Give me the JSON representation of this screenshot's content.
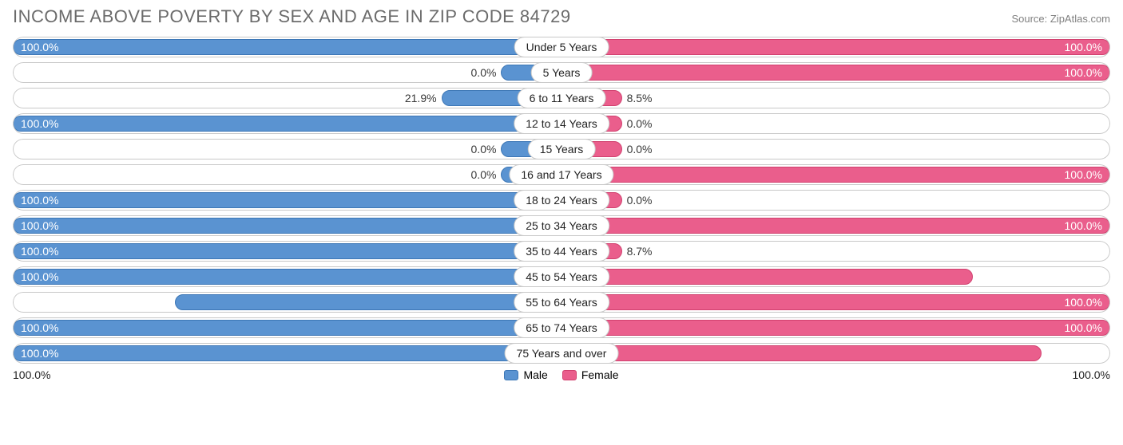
{
  "title": "INCOME ABOVE POVERTY BY SEX AND AGE IN ZIP CODE 84729",
  "title_fontsize": 22,
  "title_color": "#6b6b6b",
  "source_label": "Source: ZipAtlas.com",
  "source_fontsize": 13,
  "source_color": "#808080",
  "axis_left": "100.0%",
  "axis_right": "100.0%",
  "min_bar_pct": 11,
  "colors": {
    "male_fill": "#5a93d1",
    "male_border": "#3d77b6",
    "female_fill": "#ea5e8c",
    "female_border": "#d1416f",
    "row_border": "#c8c8c8",
    "pill_border": "#c8c8c8",
    "text_dark": "#383838"
  },
  "legend": {
    "male": "Male",
    "female": "Female"
  },
  "rows": [
    {
      "category": "Under 5 Years",
      "male_pct": 100.0,
      "male_label": "100.0%",
      "female_pct": 100.0,
      "female_label": "100.0%"
    },
    {
      "category": "5 Years",
      "male_pct": 0.0,
      "male_label": "0.0%",
      "female_pct": 100.0,
      "female_label": "100.0%"
    },
    {
      "category": "6 to 11 Years",
      "male_pct": 21.9,
      "male_label": "21.9%",
      "female_pct": 8.5,
      "female_label": "8.5%"
    },
    {
      "category": "12 to 14 Years",
      "male_pct": 100.0,
      "male_label": "100.0%",
      "female_pct": 0.0,
      "female_label": "0.0%"
    },
    {
      "category": "15 Years",
      "male_pct": 0.0,
      "male_label": "0.0%",
      "female_pct": 0.0,
      "female_label": "0.0%"
    },
    {
      "category": "16 and 17 Years",
      "male_pct": 0.0,
      "male_label": "0.0%",
      "female_pct": 100.0,
      "female_label": "100.0%"
    },
    {
      "category": "18 to 24 Years",
      "male_pct": 100.0,
      "male_label": "100.0%",
      "female_pct": 0.0,
      "female_label": "0.0%"
    },
    {
      "category": "25 to 34 Years",
      "male_pct": 100.0,
      "male_label": "100.0%",
      "female_pct": 100.0,
      "female_label": "100.0%"
    },
    {
      "category": "35 to 44 Years",
      "male_pct": 100.0,
      "male_label": "100.0%",
      "female_pct": 8.7,
      "female_label": "8.7%"
    },
    {
      "category": "45 to 54 Years",
      "male_pct": 100.0,
      "male_label": "100.0%",
      "female_pct": 75.0,
      "female_label": "75.0%"
    },
    {
      "category": "55 to 64 Years",
      "male_pct": 70.4,
      "male_label": "70.4%",
      "female_pct": 100.0,
      "female_label": "100.0%"
    },
    {
      "category": "65 to 74 Years",
      "male_pct": 100.0,
      "male_label": "100.0%",
      "female_pct": 100.0,
      "female_label": "100.0%"
    },
    {
      "category": "75 Years and over",
      "male_pct": 100.0,
      "male_label": "100.0%",
      "female_pct": 87.5,
      "female_label": "87.5%"
    }
  ]
}
